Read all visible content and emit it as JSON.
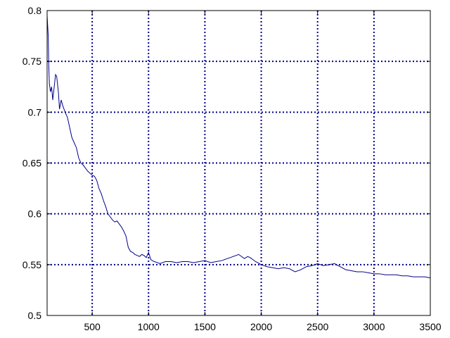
{
  "chart_data": {
    "type": "line",
    "title": "",
    "xlabel": "",
    "ylabel": "",
    "xlim": [
      100,
      3500
    ],
    "ylim": [
      0.5,
      0.8
    ],
    "grid": true,
    "grid_style": "dotted",
    "x_ticks": [
      500,
      1000,
      1500,
      2000,
      2500,
      3000,
      3500
    ],
    "x_tick_labels": [
      "500",
      "1000",
      "1500",
      "2000",
      "2500",
      "3000",
      "3500"
    ],
    "y_ticks": [
      0.5,
      0.55,
      0.6,
      0.65,
      0.7,
      0.75,
      0.8
    ],
    "y_tick_labels": [
      "0.5",
      "0.55",
      "0.6",
      "0.65",
      "0.7",
      "0.75",
      "0.8"
    ],
    "colors": {
      "line": "#00008b",
      "grid": "#00008b",
      "axes": "#000000"
    },
    "series": [
      {
        "x": [
          100,
          105,
          110,
          115,
          120,
          130,
          140,
          150,
          160,
          175,
          185,
          200,
          210,
          225,
          240,
          260,
          280,
          300,
          320,
          340,
          360,
          380,
          400,
          420,
          440,
          460,
          480,
          500,
          520,
          540,
          560,
          580,
          600,
          620,
          640,
          660,
          680,
          700,
          720,
          740,
          760,
          780,
          800,
          820,
          840,
          860,
          880,
          900,
          920,
          940,
          960,
          980,
          1000,
          1020,
          1050,
          1080,
          1100,
          1150,
          1200,
          1250,
          1300,
          1350,
          1400,
          1450,
          1500,
          1550,
          1600,
          1650,
          1700,
          1750,
          1800,
          1850,
          1880,
          1900,
          1950,
          2000,
          2050,
          2100,
          2150,
          2200,
          2250,
          2300,
          2350,
          2400,
          2450,
          2500,
          2550,
          2600,
          2650,
          2700,
          2750,
          2800,
          2850,
          2900,
          2950,
          3000,
          3050,
          3100,
          3150,
          3200,
          3250,
          3300,
          3350,
          3400,
          3450,
          3500
        ],
        "y": [
          0.795,
          0.785,
          0.775,
          0.745,
          0.728,
          0.72,
          0.725,
          0.712,
          0.722,
          0.737,
          0.735,
          0.72,
          0.703,
          0.712,
          0.706,
          0.7,
          0.695,
          0.685,
          0.675,
          0.67,
          0.665,
          0.655,
          0.65,
          0.648,
          0.645,
          0.642,
          0.64,
          0.638,
          0.637,
          0.633,
          0.625,
          0.62,
          0.613,
          0.607,
          0.6,
          0.597,
          0.594,
          0.592,
          0.593,
          0.59,
          0.587,
          0.583,
          0.578,
          0.567,
          0.563,
          0.562,
          0.56,
          0.559,
          0.558,
          0.56,
          0.559,
          0.557,
          0.562,
          0.555,
          0.553,
          0.552,
          0.551,
          0.553,
          0.553,
          0.552,
          0.553,
          0.553,
          0.552,
          0.553,
          0.554,
          0.552,
          0.553,
          0.554,
          0.556,
          0.558,
          0.56,
          0.556,
          0.558,
          0.557,
          0.553,
          0.55,
          0.548,
          0.547,
          0.546,
          0.547,
          0.546,
          0.543,
          0.545,
          0.548,
          0.549,
          0.551,
          0.549,
          0.55,
          0.551,
          0.548,
          0.545,
          0.544,
          0.543,
          0.543,
          0.542,
          0.541,
          0.541,
          0.54,
          0.54,
          0.54,
          0.539,
          0.539,
          0.538,
          0.538,
          0.538,
          0.537
        ]
      }
    ]
  }
}
